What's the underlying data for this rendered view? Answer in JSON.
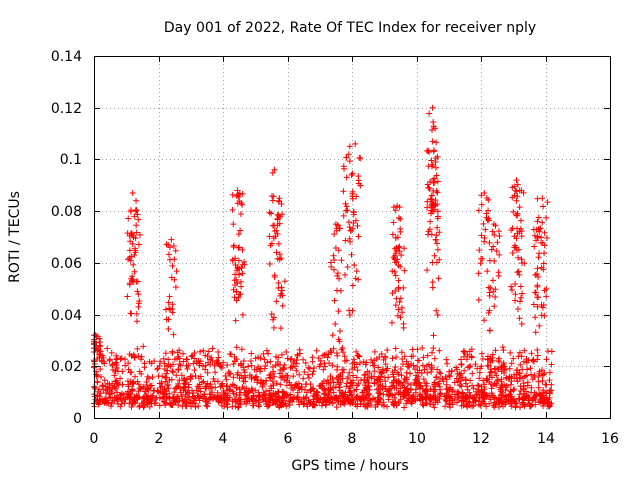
{
  "chart_data": {
    "type": "scatter",
    "title": "Day 001 of 2022, Rate Of TEC Index for receiver nply",
    "xlabel": "GPS time / hours",
    "ylabel": "ROTI / TECUs",
    "xlim": [
      0,
      16
    ],
    "ylim": [
      0,
      0.14
    ],
    "x_ticks": [
      "0",
      "2",
      "4",
      "6",
      "8",
      "10",
      "12",
      "14",
      "16"
    ],
    "x_tick_values": [
      0,
      2,
      4,
      6,
      8,
      10,
      12,
      14,
      16
    ],
    "y_ticks": [
      "0",
      "0.02",
      "0.04",
      "0.06",
      "0.08",
      "0.1",
      "0.12",
      "0.14"
    ],
    "y_tick_values": [
      0,
      0.02,
      0.04,
      0.06,
      0.08,
      0.1,
      0.12,
      0.14
    ],
    "grid": true,
    "marker": "+",
    "color": "#ff0000",
    "data_x_range": [
      0,
      14.2
    ],
    "baseline_level": 0.012,
    "baseline_spread": 0.02,
    "peaks": [
      {
        "x": 0.05,
        "y": 0.032
      },
      {
        "x": 1.2,
        "y": 0.087
      },
      {
        "x": 1.25,
        "y": 0.078
      },
      {
        "x": 2.4,
        "y": 0.069
      },
      {
        "x": 4.45,
        "y": 0.088
      },
      {
        "x": 4.5,
        "y": 0.066
      },
      {
        "x": 5.6,
        "y": 0.096
      },
      {
        "x": 5.75,
        "y": 0.085
      },
      {
        "x": 7.5,
        "y": 0.075
      },
      {
        "x": 7.9,
        "y": 0.102
      },
      {
        "x": 8.1,
        "y": 0.106
      },
      {
        "x": 9.4,
        "y": 0.082
      },
      {
        "x": 9.5,
        "y": 0.072
      },
      {
        "x": 10.5,
        "y": 0.12
      },
      {
        "x": 10.5,
        "y": 0.107
      },
      {
        "x": 10.55,
        "y": 0.091
      },
      {
        "x": 12.1,
        "y": 0.087
      },
      {
        "x": 12.4,
        "y": 0.075
      },
      {
        "x": 13.1,
        "y": 0.092
      },
      {
        "x": 13.2,
        "y": 0.088
      },
      {
        "x": 13.9,
        "y": 0.085
      },
      {
        "x": 13.8,
        "y": 0.073
      }
    ]
  }
}
